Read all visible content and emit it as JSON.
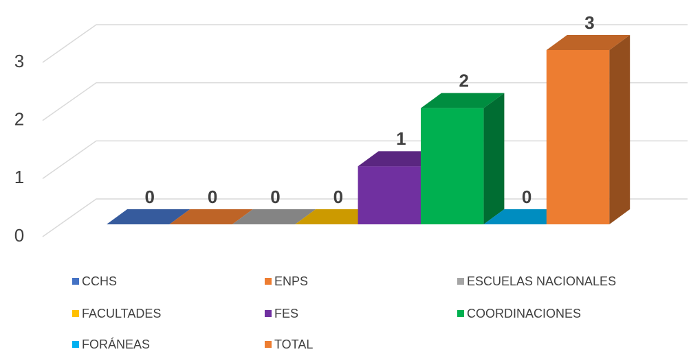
{
  "chart_data": {
    "type": "bar3d",
    "series": [
      {
        "name": "CCHS",
        "color": "#4472c4",
        "values": [
          0
        ]
      },
      {
        "name": "ENPS",
        "color": "#ed7d31",
        "values": [
          0
        ]
      },
      {
        "name": "ESCUELAS NACIONALES",
        "color": "#a5a5a5",
        "values": [
          0
        ]
      },
      {
        "name": "FACULTADES",
        "color": "#ffc000",
        "values": [
          0
        ]
      },
      {
        "name": "FES",
        "color": "#7030a0",
        "values": [
          1
        ]
      },
      {
        "name": "COORDINACIONES",
        "color": "#00b050",
        "values": [
          2
        ]
      },
      {
        "name": "FORÁNEAS",
        "color": "#00b0f0",
        "values": [
          0
        ]
      },
      {
        "name": "TOTAL",
        "color": "#ed7d31",
        "values": [
          3
        ]
      }
    ],
    "ylim": [
      0,
      3
    ],
    "yticks": [
      0,
      1,
      2,
      3
    ],
    "grid": true,
    "legend": "bottom"
  }
}
